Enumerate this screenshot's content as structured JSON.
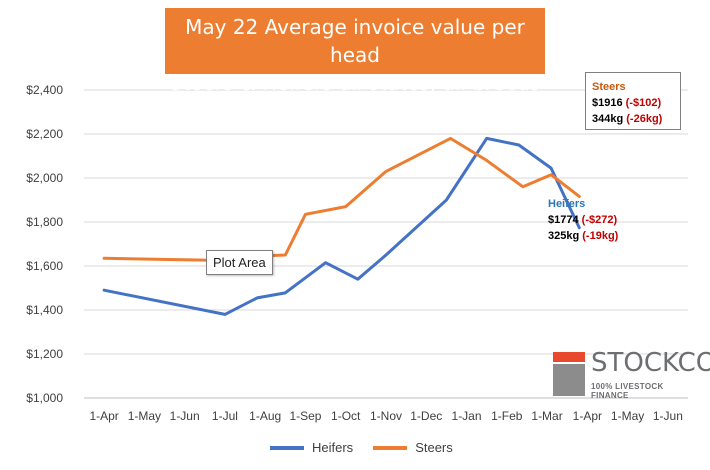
{
  "title": {
    "line1": "May 22 Average invoice value per head",
    "line2": "Steers & Heifers all states, all breeds"
  },
  "tooltip": "Plot Area",
  "annotations": {
    "steers": {
      "label": "Steers",
      "price": "$1916",
      "price_change": "(-$102)",
      "weight": "344kg",
      "weight_change": "(-26kg)"
    },
    "heifers": {
      "label": "Heifers",
      "price": "$1774",
      "price_change": "(-$272)",
      "weight": "325kg",
      "weight_change": "(-19kg)"
    }
  },
  "logo": {
    "name": "STOCKCO",
    "tagline": "100% LIVESTOCK FINANCE"
  },
  "colors": {
    "heifers": "#4472c4",
    "steers": "#ed7d31",
    "annot_steers": "#c55a11",
    "annot_heifers": "#2e75b6"
  },
  "chart_data": {
    "type": "line",
    "x": [
      "1-Apr",
      "1-May",
      "1-Jun",
      "1-Jul",
      "1-Aug",
      "1-Sep",
      "1-Oct",
      "1-Nov",
      "1-Dec",
      "1-Jan",
      "1-Feb",
      "1-Mar",
      "1-Apr",
      "1-May",
      "1-Jun"
    ],
    "y_ticks": [
      "$1,000",
      "$1,200",
      "$1,400",
      "$1,600",
      "$1,800",
      "$2,000",
      "$2,200",
      "$2,400"
    ],
    "ylim": [
      1000,
      2400
    ],
    "grid": true,
    "legend_position": "bottom",
    "series": [
      {
        "name": "Heifers",
        "points": [
          {
            "x": 0,
            "y": 1490
          },
          {
            "x": 3,
            "y": 1380
          },
          {
            "x": 3.8,
            "y": 1455
          },
          {
            "x": 4.5,
            "y": 1478
          },
          {
            "x": 5.5,
            "y": 1615
          },
          {
            "x": 6.3,
            "y": 1540
          },
          {
            "x": 7,
            "y": 1650
          },
          {
            "x": 8.5,
            "y": 1900
          },
          {
            "x": 9.5,
            "y": 2180
          },
          {
            "x": 10.3,
            "y": 2150
          },
          {
            "x": 11.1,
            "y": 2045
          },
          {
            "x": 11.8,
            "y": 1774
          }
        ]
      },
      {
        "name": "Steers",
        "points": [
          {
            "x": 0,
            "y": 1635
          },
          {
            "x": 3,
            "y": 1625
          },
          {
            "x": 3.8,
            "y": 1645
          },
          {
            "x": 4.5,
            "y": 1650
          },
          {
            "x": 5,
            "y": 1835
          },
          {
            "x": 6,
            "y": 1870
          },
          {
            "x": 7,
            "y": 2030
          },
          {
            "x": 8.6,
            "y": 2180
          },
          {
            "x": 9.5,
            "y": 2080
          },
          {
            "x": 10.4,
            "y": 1960
          },
          {
            "x": 11.1,
            "y": 2015
          },
          {
            "x": 11.8,
            "y": 1916
          }
        ]
      }
    ]
  }
}
